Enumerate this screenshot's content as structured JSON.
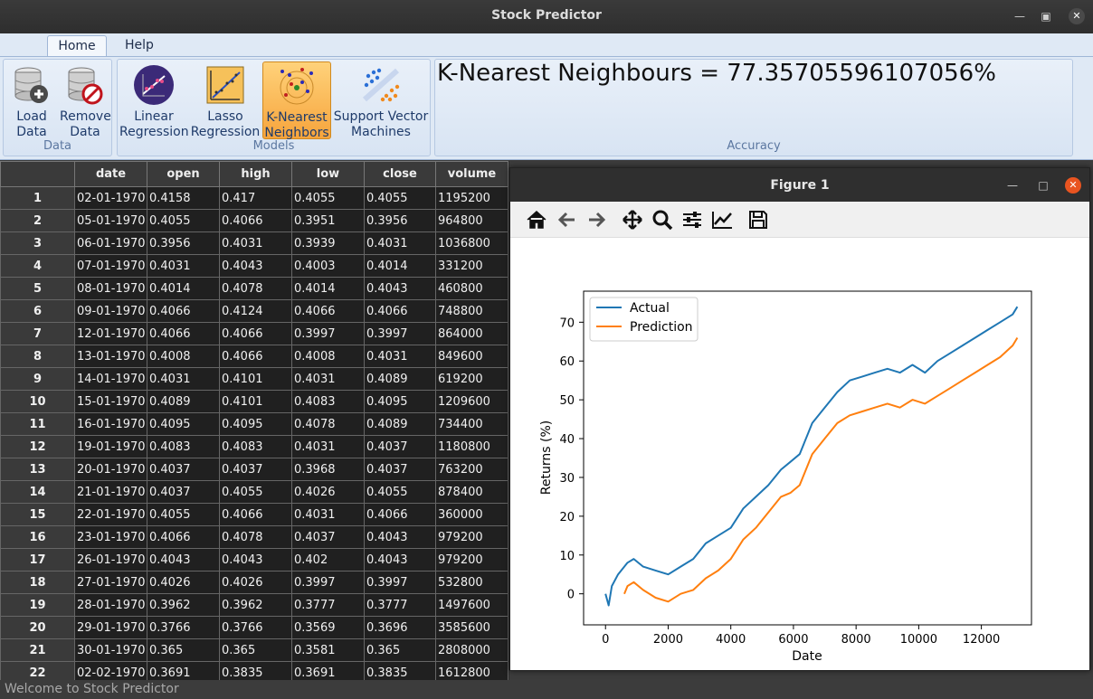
{
  "window": {
    "title": "Stock Predictor"
  },
  "ribbon": {
    "tabs": [
      "Home",
      "Help"
    ],
    "groups": {
      "data": {
        "label": "Data",
        "load": "Load\nData",
        "remove": "Remove\nData"
      },
      "models": {
        "label": "Models",
        "linear": "Linear\nRegression",
        "lasso": "Lasso\nRegression",
        "knn": "K-Nearest\nNeighbors",
        "svm": "Support Vector\nMachines"
      },
      "accuracy": {
        "label": "Accuracy",
        "text": "K-Nearest Neighbours = 77.35705596107056%"
      }
    }
  },
  "table": {
    "columns": [
      "date",
      "open",
      "high",
      "low",
      "close",
      "volume"
    ],
    "rows": [
      [
        "1",
        "02-01-1970",
        "0.4158",
        "0.417",
        "0.4055",
        "0.4055",
        "1195200"
      ],
      [
        "2",
        "05-01-1970",
        "0.4055",
        "0.4066",
        "0.3951",
        "0.3956",
        "964800"
      ],
      [
        "3",
        "06-01-1970",
        "0.3956",
        "0.4031",
        "0.3939",
        "0.4031",
        "1036800"
      ],
      [
        "4",
        "07-01-1970",
        "0.4031",
        "0.4043",
        "0.4003",
        "0.4014",
        "331200"
      ],
      [
        "5",
        "08-01-1970",
        "0.4014",
        "0.4078",
        "0.4014",
        "0.4043",
        "460800"
      ],
      [
        "6",
        "09-01-1970",
        "0.4066",
        "0.4124",
        "0.4066",
        "0.4066",
        "748800"
      ],
      [
        "7",
        "12-01-1970",
        "0.4066",
        "0.4066",
        "0.3997",
        "0.3997",
        "864000"
      ],
      [
        "8",
        "13-01-1970",
        "0.4008",
        "0.4066",
        "0.4008",
        "0.4031",
        "849600"
      ],
      [
        "9",
        "14-01-1970",
        "0.4031",
        "0.4101",
        "0.4031",
        "0.4089",
        "619200"
      ],
      [
        "10",
        "15-01-1970",
        "0.4089",
        "0.4101",
        "0.4083",
        "0.4095",
        "1209600"
      ],
      [
        "11",
        "16-01-1970",
        "0.4095",
        "0.4095",
        "0.4078",
        "0.4089",
        "734400"
      ],
      [
        "12",
        "19-01-1970",
        "0.4083",
        "0.4083",
        "0.4031",
        "0.4037",
        "1180800"
      ],
      [
        "13",
        "20-01-1970",
        "0.4037",
        "0.4037",
        "0.3968",
        "0.4037",
        "763200"
      ],
      [
        "14",
        "21-01-1970",
        "0.4037",
        "0.4055",
        "0.4026",
        "0.4055",
        "878400"
      ],
      [
        "15",
        "22-01-1970",
        "0.4055",
        "0.4066",
        "0.4031",
        "0.4066",
        "360000"
      ],
      [
        "16",
        "23-01-1970",
        "0.4066",
        "0.4078",
        "0.4037",
        "0.4043",
        "979200"
      ],
      [
        "17",
        "26-01-1970",
        "0.4043",
        "0.4043",
        "0.402",
        "0.4043",
        "979200"
      ],
      [
        "18",
        "27-01-1970",
        "0.4026",
        "0.4026",
        "0.3997",
        "0.3997",
        "532800"
      ],
      [
        "19",
        "28-01-1970",
        "0.3962",
        "0.3962",
        "0.3777",
        "0.3777",
        "1497600"
      ],
      [
        "20",
        "29-01-1970",
        "0.3766",
        "0.3766",
        "0.3569",
        "0.3696",
        "3585600"
      ],
      [
        "21",
        "30-01-1970",
        "0.365",
        "0.365",
        "0.3581",
        "0.365",
        "2808000"
      ],
      [
        "22",
        "02-02-1970",
        "0.3691",
        "0.3835",
        "0.3691",
        "0.3835",
        "1612800"
      ]
    ]
  },
  "status": {
    "text": "Welcome to Stock Predictor"
  },
  "figure": {
    "title": "Figure 1",
    "toolbar": [
      "home-icon",
      "back-icon",
      "forward-icon",
      "pan-icon",
      "zoom-icon",
      "configure-icon",
      "edit-axis-icon",
      "save-icon"
    ]
  },
  "chart_data": {
    "type": "line",
    "xlabel": "Date",
    "ylabel": "Returns (%)",
    "xlim": [
      -700,
      13600
    ],
    "ylim": [
      -8,
      78
    ],
    "xticks": [
      0,
      2000,
      4000,
      6000,
      8000,
      10000,
      12000
    ],
    "yticks": [
      0,
      10,
      20,
      30,
      40,
      50,
      60,
      70
    ],
    "legend": "upper-left",
    "series": [
      {
        "name": "Actual",
        "color": "#1f77b4",
        "x": [
          0,
          100,
          200,
          400,
          700,
          900,
          1200,
          1600,
          2000,
          2400,
          2800,
          3200,
          3600,
          4000,
          4400,
          4800,
          5200,
          5600,
          5900,
          6200,
          6600,
          7000,
          7400,
          7800,
          8200,
          8600,
          9000,
          9400,
          9800,
          10200,
          10600,
          11000,
          11400,
          11800,
          12200,
          12600,
          13000,
          13150
        ],
        "y": [
          0,
          -3,
          2,
          5,
          8,
          9,
          7,
          6,
          5,
          7,
          9,
          13,
          15,
          17,
          22,
          25,
          28,
          32,
          34,
          36,
          44,
          48,
          52,
          55,
          56,
          57,
          58,
          57,
          59,
          57,
          60,
          62,
          64,
          66,
          68,
          70,
          72,
          74
        ]
      },
      {
        "name": "Prediction",
        "color": "#ff7f0e",
        "x": [
          600,
          700,
          900,
          1200,
          1600,
          2000,
          2400,
          2800,
          3200,
          3600,
          4000,
          4400,
          4800,
          5200,
          5600,
          5900,
          6200,
          6600,
          7000,
          7400,
          7800,
          8200,
          8600,
          9000,
          9400,
          9800,
          10200,
          10600,
          11000,
          11400,
          11800,
          12200,
          12600,
          13000,
          13150
        ],
        "y": [
          0,
          2,
          3,
          1,
          -1,
          -2,
          0,
          1,
          4,
          6,
          9,
          14,
          17,
          21,
          25,
          26,
          28,
          36,
          40,
          44,
          46,
          47,
          48,
          49,
          48,
          50,
          49,
          51,
          53,
          55,
          57,
          59,
          61,
          64,
          66
        ]
      }
    ]
  }
}
